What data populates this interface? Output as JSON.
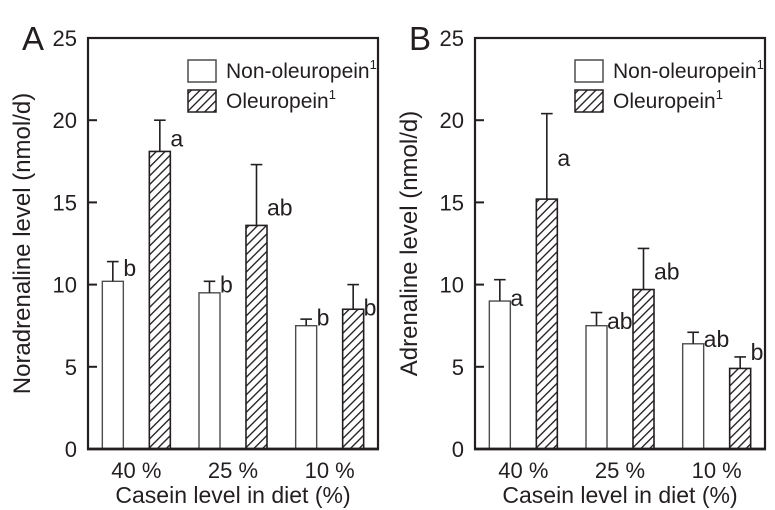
{
  "figure": {
    "background": "#ffffff",
    "ink": "#231f20",
    "bar_outline_plain": "#4d4d4d",
    "bar_outline_hatch": "#231f20"
  },
  "chart_data": [
    {
      "type": "bar",
      "panel_label": "A",
      "ylabel": "Noradrenaline level (nmol/d)",
      "xlabel": "Casein level in diet (%)",
      "categories": [
        "40 %",
        "25 %",
        "10 %"
      ],
      "ylim": [
        0,
        25
      ],
      "yticks": [
        0,
        5,
        10,
        15,
        20,
        25
      ],
      "grid": false,
      "legend_position": "upper-center-inside",
      "legend": [
        {
          "label": "Non-oleuropein",
          "superscript": "1",
          "fill": "plain"
        },
        {
          "label": "Oleuropein",
          "superscript": "1",
          "fill": "hatch"
        }
      ],
      "series": [
        {
          "name": "Non-oleuropein",
          "fill": "plain",
          "values": [
            10.2,
            9.5,
            7.5
          ],
          "err_up": [
            1.2,
            0.7,
            0.4
          ],
          "sig_letters": [
            "b",
            "b",
            "b"
          ],
          "sig_letter_y": [
            11.0,
            10.0,
            8.0
          ]
        },
        {
          "name": "Oleuropein",
          "fill": "hatch",
          "values": [
            18.1,
            13.6,
            8.5
          ],
          "err_up": [
            1.9,
            3.7,
            1.5
          ],
          "sig_letters": [
            "a",
            "ab",
            "b"
          ],
          "sig_letter_y": [
            18.9,
            14.7,
            8.6
          ]
        }
      ]
    },
    {
      "type": "bar",
      "panel_label": "B",
      "ylabel": "Adrenaline level (nmol/d)",
      "xlabel": "Casein level in diet (%)",
      "categories": [
        "40 %",
        "25 %",
        "10 %"
      ],
      "ylim": [
        0,
        25
      ],
      "yticks": [
        0,
        5,
        10,
        15,
        20,
        25
      ],
      "grid": false,
      "legend_position": "upper-center-inside",
      "legend": [
        {
          "label": "Non-oleuropein",
          "superscript": "1",
          "fill": "plain"
        },
        {
          "label": "Oleuropein",
          "superscript": "1",
          "fill": "hatch"
        }
      ],
      "series": [
        {
          "name": "Non-oleuropein",
          "fill": "plain",
          "values": [
            9.0,
            7.5,
            6.4
          ],
          "err_up": [
            1.3,
            0.8,
            0.7
          ],
          "sig_letters": [
            "a",
            "ab",
            "ab"
          ],
          "sig_letter_y": [
            9.2,
            7.8,
            6.7
          ]
        },
        {
          "name": "Oleuropein",
          "fill": "hatch",
          "values": [
            15.2,
            9.7,
            4.9
          ],
          "err_up": [
            5.2,
            2.5,
            0.7
          ],
          "sig_letters": [
            "a",
            "ab",
            "b"
          ],
          "sig_letter_y": [
            17.7,
            10.8,
            5.9
          ]
        }
      ]
    }
  ]
}
